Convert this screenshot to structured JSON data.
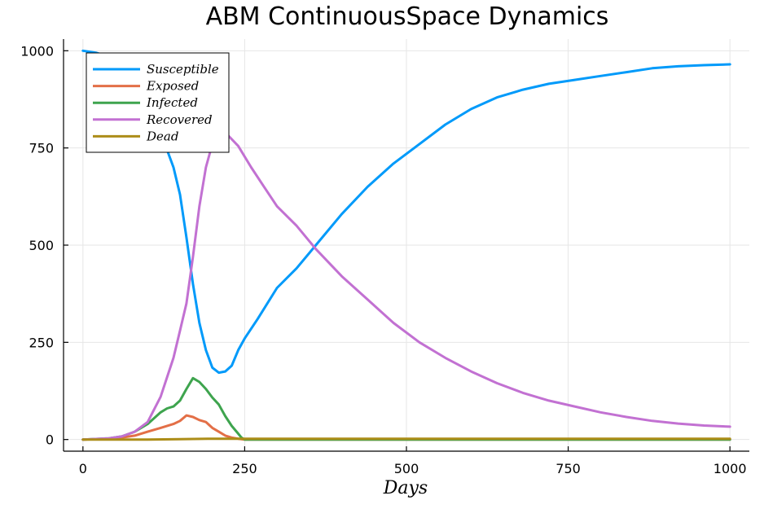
{
  "chart_data": {
    "type": "line",
    "title": "ABM ContinuousSpace Dynamics",
    "xlabel": "Days",
    "ylabel": "",
    "xlim": [
      -30,
      1030
    ],
    "ylim": [
      -30,
      1030
    ],
    "xticks": [
      0,
      250,
      500,
      750,
      1000
    ],
    "yticks": [
      0,
      250,
      500,
      750,
      1000
    ],
    "grid": true,
    "legend_position": "top-left",
    "series": [
      {
        "name": "Susceptible",
        "color": "#009AFA",
        "x": [
          0,
          20,
          40,
          60,
          80,
          100,
          120,
          140,
          150,
          160,
          170,
          180,
          190,
          200,
          210,
          220,
          230,
          240,
          250,
          270,
          300,
          330,
          360,
          400,
          440,
          480,
          520,
          560,
          600,
          640,
          680,
          720,
          760,
          800,
          840,
          880,
          920,
          960,
          1000
        ],
        "y": [
          1000,
          995,
          985,
          960,
          920,
          860,
          790,
          700,
          630,
          520,
          400,
          300,
          230,
          185,
          172,
          175,
          190,
          230,
          260,
          310,
          390,
          440,
          500,
          580,
          650,
          710,
          760,
          810,
          850,
          880,
          900,
          915,
          925,
          935,
          945,
          955,
          960,
          963,
          965
        ]
      },
      {
        "name": "Exposed",
        "color": "#E36F47",
        "x": [
          0,
          40,
          60,
          80,
          100,
          120,
          140,
          150,
          160,
          170,
          180,
          190,
          200,
          210,
          220,
          230,
          240,
          250,
          300,
          500,
          750,
          1000
        ],
        "y": [
          0,
          2,
          5,
          10,
          20,
          30,
          40,
          48,
          62,
          58,
          50,
          45,
          30,
          20,
          10,
          5,
          2,
          0,
          0,
          0,
          0,
          0
        ]
      },
      {
        "name": "Infected",
        "color": "#3EA44E",
        "x": [
          0,
          40,
          60,
          80,
          100,
          120,
          130,
          140,
          150,
          160,
          170,
          180,
          190,
          200,
          210,
          220,
          230,
          240,
          245,
          250,
          300,
          500,
          750,
          1000
        ],
        "y": [
          0,
          3,
          8,
          20,
          40,
          70,
          80,
          85,
          100,
          130,
          158,
          148,
          130,
          108,
          90,
          60,
          35,
          15,
          5,
          0,
          0,
          0,
          0,
          0
        ]
      },
      {
        "name": "Recovered",
        "color": "#C271D2",
        "x": [
          0,
          40,
          60,
          80,
          100,
          120,
          140,
          150,
          160,
          170,
          180,
          190,
          200,
          210,
          220,
          240,
          260,
          280,
          300,
          330,
          360,
          400,
          440,
          480,
          520,
          560,
          600,
          640,
          680,
          720,
          760,
          800,
          840,
          880,
          920,
          960,
          1000
        ],
        "y": [
          0,
          3,
          8,
          20,
          45,
          110,
          210,
          280,
          350,
          470,
          600,
          700,
          760,
          800,
          790,
          755,
          700,
          650,
          600,
          550,
          490,
          420,
          360,
          300,
          250,
          210,
          175,
          145,
          120,
          100,
          85,
          70,
          58,
          48,
          41,
          36,
          33
        ]
      },
      {
        "name": "Dead",
        "color": "#AC8D18",
        "x": [
          0,
          100,
          150,
          200,
          250,
          500,
          750,
          1000
        ],
        "y": [
          0,
          0,
          1,
          2,
          2,
          2,
          2,
          2
        ]
      }
    ]
  }
}
